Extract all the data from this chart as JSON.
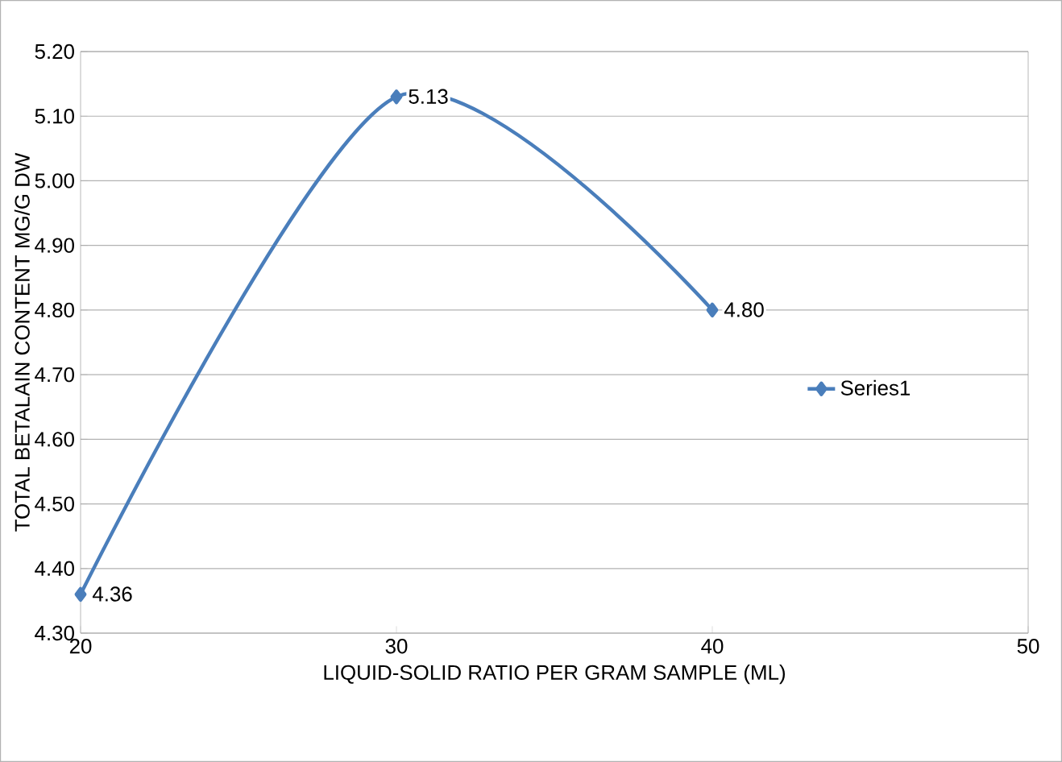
{
  "chart_data": {
    "type": "line",
    "xlabel": "LIQUID-SOLID RATIO PER GRAM SAMPLE (ML)",
    "ylabel": "TOTAL BETALAIN CONTENT  MG/G DW",
    "x": [
      20,
      30,
      40
    ],
    "series": [
      {
        "name": "Series1",
        "color": "#4a7ebb",
        "values": [
          4.36,
          5.13,
          4.8
        ],
        "value_labels": [
          "4.36",
          "5.13",
          "4.80"
        ]
      }
    ],
    "xlim": [
      20,
      50
    ],
    "xticks": [
      20,
      30,
      40,
      50
    ],
    "ylim": [
      4.3,
      5.2
    ],
    "yticks": [
      {
        "value": 4.3,
        "label": "4.30"
      },
      {
        "value": 4.4,
        "label": "4.40"
      },
      {
        "value": 4.5,
        "label": "4.50"
      },
      {
        "value": 4.6,
        "label": "4.60"
      },
      {
        "value": 4.7,
        "label": "4.70"
      },
      {
        "value": 4.8,
        "label": "4.80"
      },
      {
        "value": 4.9,
        "label": "4.90"
      },
      {
        "value": 5.0,
        "label": "5.00"
      },
      {
        "value": 5.1,
        "label": "5.10"
      },
      {
        "value": 5.2,
        "label": "5.20"
      }
    ],
    "grid": "y",
    "legend": "right",
    "marker": "diamond",
    "line_style": "solid"
  }
}
